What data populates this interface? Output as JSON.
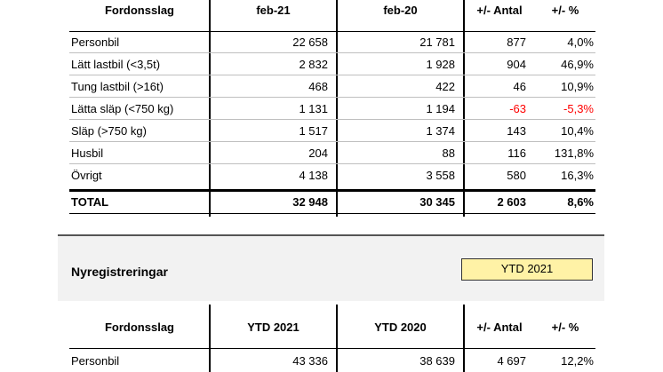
{
  "table1": {
    "headers": [
      "Fordonsslag",
      "feb-21",
      "feb-20",
      "+/- Antal",
      "+/- %"
    ],
    "rows": [
      [
        "Personbil",
        "22 658",
        "21 781",
        "877",
        "4,0%"
      ],
      [
        "Lätt lastbil (<3,5t)",
        "2 832",
        "1 928",
        "904",
        "46,9%"
      ],
      [
        "Tung lastbil (>16t)",
        "468",
        "422",
        "46",
        "10,9%"
      ],
      [
        "Lätta släp (<750 kg)",
        "1 131",
        "1 194",
        "-63",
        "-5,3%"
      ],
      [
        "Släp (>750 kg)",
        "1 517",
        "1 374",
        "143",
        "10,4%"
      ],
      [
        "Husbil",
        "204",
        "88",
        "116",
        "131,8%"
      ],
      [
        "Övrigt",
        "4 138",
        "3 558",
        "580",
        "16,3%"
      ]
    ],
    "total": [
      "TOTAL",
      "32 948",
      "30 345",
      "2 603",
      "8,6%"
    ]
  },
  "section2": {
    "title": "Nyregistreringar",
    "selector_value": "YTD 2021",
    "selector_color": "#fff2a6"
  },
  "table2": {
    "headers": [
      "Fordonsslag",
      "YTD 2021",
      "YTD 2020",
      "+/- Antal",
      "+/- %"
    ],
    "rows": [
      [
        "Personbil",
        "43 336",
        "38 639",
        "4 697",
        "12,2%"
      ]
    ]
  },
  "colors": {
    "negative": "#ff0000",
    "panel": "#f2f2f2"
  }
}
